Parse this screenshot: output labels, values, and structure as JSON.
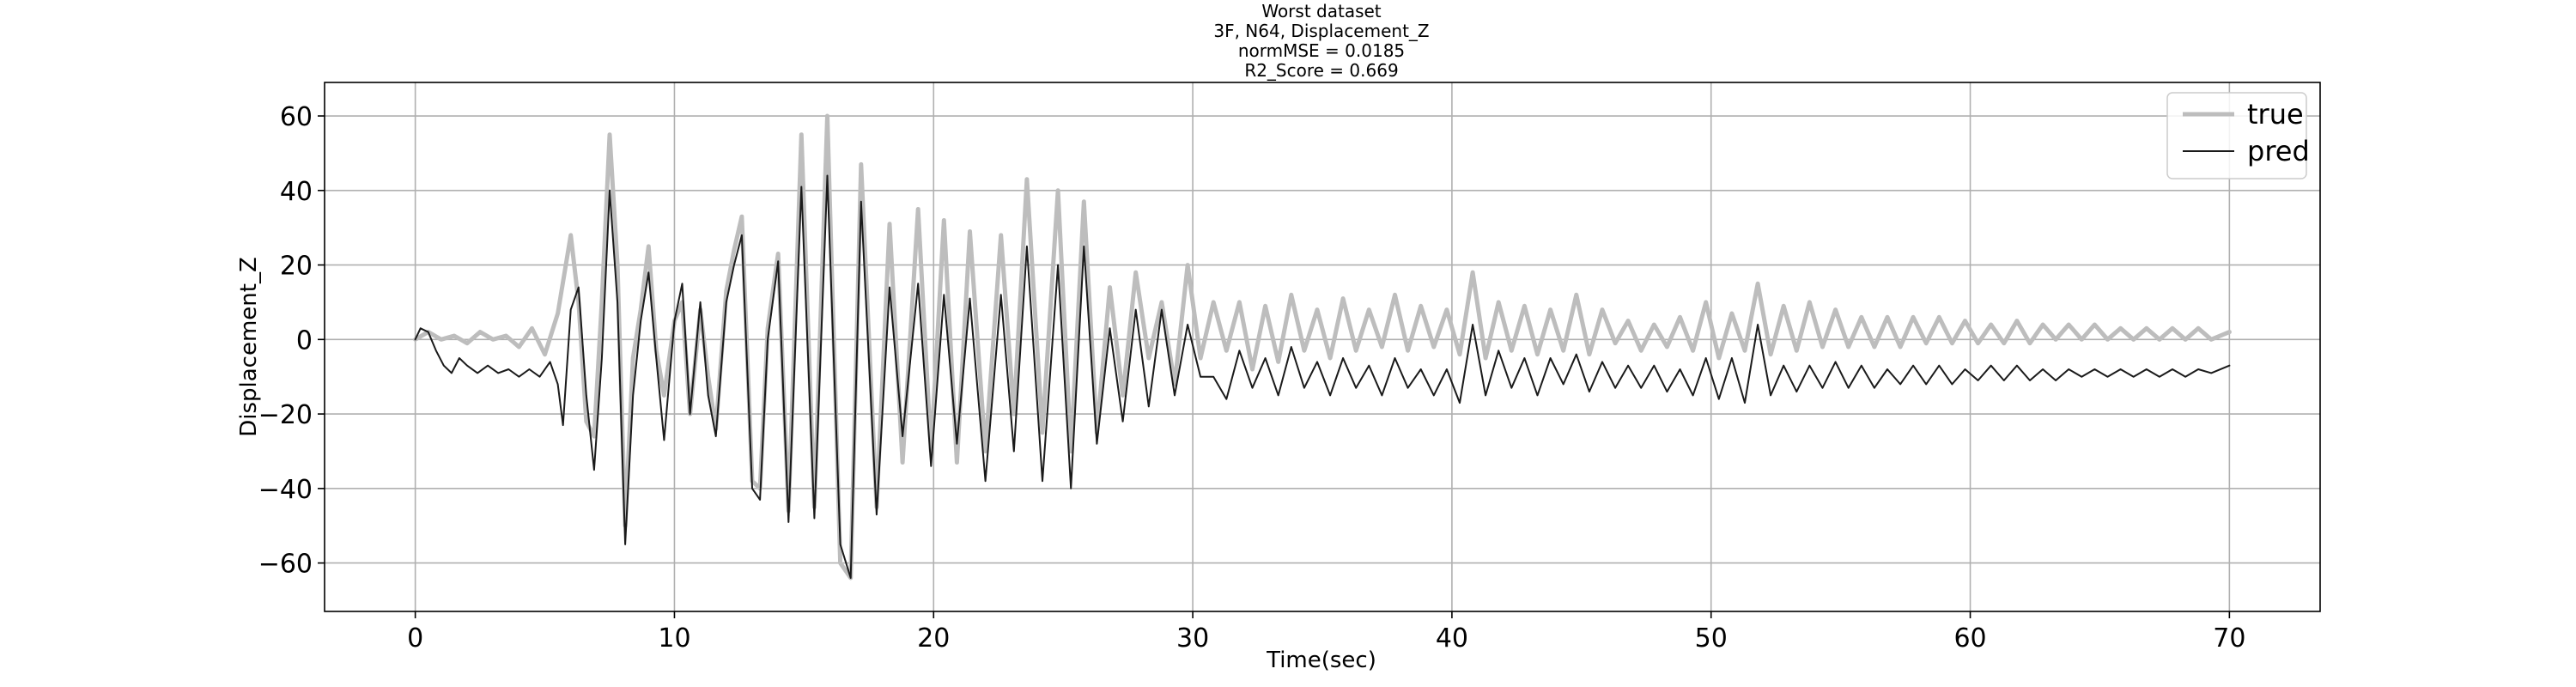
{
  "chart_data": {
    "type": "line",
    "title_lines": [
      "Worst dataset",
      "3F, N64, Displacement_Z",
      "normMSE = 0.0185",
      "R2_Score = 0.669"
    ],
    "xlabel": "Time(sec)",
    "ylabel": "Displacement_Z",
    "xlim": [
      -3.5,
      73.5
    ],
    "ylim": [
      -73,
      69
    ],
    "xticks": [
      0,
      10,
      20,
      30,
      40,
      50,
      60,
      70
    ],
    "yticks": [
      -60,
      -40,
      -20,
      0,
      20,
      40,
      60
    ],
    "xtick_labels": [
      "0",
      "10",
      "20",
      "30",
      "40",
      "50",
      "60",
      "70"
    ],
    "ytick_labels": [
      "−60",
      "−40",
      "−20",
      "0",
      "20",
      "40",
      "60"
    ],
    "grid": true,
    "legend": {
      "placement": "top-right",
      "entries": [
        "true",
        "pred"
      ]
    },
    "series": [
      {
        "name": "true",
        "color": "#bdbdbd",
        "points": [
          [
            0,
            0
          ],
          [
            0.5,
            2
          ],
          [
            1,
            0
          ],
          [
            1.5,
            1
          ],
          [
            2,
            -1
          ],
          [
            2.5,
            2
          ],
          [
            3,
            0
          ],
          [
            3.5,
            1
          ],
          [
            4,
            -2
          ],
          [
            4.5,
            3
          ],
          [
            5,
            -4
          ],
          [
            5.5,
            7
          ],
          [
            6,
            28
          ],
          [
            6.3,
            10
          ],
          [
            6.6,
            -22
          ],
          [
            6.9,
            -26
          ],
          [
            7.2,
            10
          ],
          [
            7.5,
            55
          ],
          [
            7.8,
            20
          ],
          [
            8.1,
            -50
          ],
          [
            8.4,
            -5
          ],
          [
            8.7,
            8
          ],
          [
            9,
            25
          ],
          [
            9.3,
            -3
          ],
          [
            9.6,
            -15
          ],
          [
            10,
            5
          ],
          [
            10.3,
            10
          ],
          [
            10.6,
            -20
          ],
          [
            11,
            8
          ],
          [
            11.3,
            -10
          ],
          [
            11.6,
            -24
          ],
          [
            12,
            13
          ],
          [
            12.3,
            24
          ],
          [
            12.6,
            33
          ],
          [
            13,
            -38
          ],
          [
            13.3,
            -40
          ],
          [
            13.6,
            3
          ],
          [
            14,
            23
          ],
          [
            14.4,
            -46
          ],
          [
            14.9,
            55
          ],
          [
            15.4,
            -45
          ],
          [
            15.9,
            60
          ],
          [
            16.4,
            -60
          ],
          [
            16.8,
            -64
          ],
          [
            17.2,
            47
          ],
          [
            17.8,
            -45
          ],
          [
            18.3,
            31
          ],
          [
            18.8,
            -33
          ],
          [
            19.4,
            35
          ],
          [
            19.9,
            -30
          ],
          [
            20.4,
            32
          ],
          [
            20.9,
            -33
          ],
          [
            21.4,
            29
          ],
          [
            22,
            -30
          ],
          [
            22.6,
            28
          ],
          [
            23.1,
            -20
          ],
          [
            23.6,
            43
          ],
          [
            24.2,
            -25
          ],
          [
            24.8,
            40
          ],
          [
            25.3,
            -30
          ],
          [
            25.8,
            37
          ],
          [
            26.3,
            -25
          ],
          [
            26.8,
            14
          ],
          [
            27.3,
            -15
          ],
          [
            27.8,
            18
          ],
          [
            28.3,
            -5
          ],
          [
            28.8,
            10
          ],
          [
            29.3,
            -12
          ],
          [
            29.8,
            20
          ],
          [
            30.3,
            -5
          ],
          [
            30.8,
            10
          ],
          [
            31.3,
            -3
          ],
          [
            31.8,
            10
          ],
          [
            32.3,
            -8
          ],
          [
            32.8,
            9
          ],
          [
            33.3,
            -6
          ],
          [
            33.8,
            12
          ],
          [
            34.3,
            -3
          ],
          [
            34.8,
            8
          ],
          [
            35.3,
            -5
          ],
          [
            35.8,
            11
          ],
          [
            36.3,
            -3
          ],
          [
            36.8,
            8
          ],
          [
            37.3,
            -2
          ],
          [
            37.8,
            12
          ],
          [
            38.3,
            -3
          ],
          [
            38.8,
            9
          ],
          [
            39.3,
            -2
          ],
          [
            39.8,
            8
          ],
          [
            40.3,
            -4
          ],
          [
            40.8,
            18
          ],
          [
            41.3,
            -5
          ],
          [
            41.8,
            10
          ],
          [
            42.3,
            -3
          ],
          [
            42.8,
            9
          ],
          [
            43.3,
            -4
          ],
          [
            43.8,
            8
          ],
          [
            44.3,
            -3
          ],
          [
            44.8,
            12
          ],
          [
            45.3,
            -4
          ],
          [
            45.8,
            8
          ],
          [
            46.3,
            -1
          ],
          [
            46.8,
            5
          ],
          [
            47.3,
            -3
          ],
          [
            47.8,
            4
          ],
          [
            48.3,
            -2
          ],
          [
            48.8,
            6
          ],
          [
            49.3,
            -3
          ],
          [
            49.8,
            10
          ],
          [
            50.3,
            -5
          ],
          [
            50.8,
            7
          ],
          [
            51.3,
            -3
          ],
          [
            51.8,
            15
          ],
          [
            52.3,
            -4
          ],
          [
            52.8,
            9
          ],
          [
            53.3,
            -3
          ],
          [
            53.8,
            10
          ],
          [
            54.3,
            -2
          ],
          [
            54.8,
            8
          ],
          [
            55.3,
            -2
          ],
          [
            55.8,
            6
          ],
          [
            56.3,
            -2
          ],
          [
            56.8,
            6
          ],
          [
            57.3,
            -2
          ],
          [
            57.8,
            6
          ],
          [
            58.3,
            -1
          ],
          [
            58.8,
            6
          ],
          [
            59.3,
            -1
          ],
          [
            59.8,
            5
          ],
          [
            60.3,
            -1
          ],
          [
            60.8,
            4
          ],
          [
            61.3,
            -1
          ],
          [
            61.8,
            5
          ],
          [
            62.3,
            -1
          ],
          [
            62.8,
            4
          ],
          [
            63.3,
            0
          ],
          [
            63.8,
            4
          ],
          [
            64.3,
            0
          ],
          [
            64.8,
            4
          ],
          [
            65.3,
            0
          ],
          [
            65.8,
            3
          ],
          [
            66.3,
            0
          ],
          [
            66.8,
            3
          ],
          [
            67.3,
            0
          ],
          [
            67.8,
            3
          ],
          [
            68.3,
            0
          ],
          [
            68.8,
            3
          ],
          [
            69.3,
            0
          ],
          [
            70,
            2
          ]
        ]
      },
      {
        "name": "pred",
        "color": "#1a1a1a",
        "points": [
          [
            0,
            0
          ],
          [
            0.2,
            3
          ],
          [
            0.5,
            2
          ],
          [
            0.8,
            -3
          ],
          [
            1.1,
            -7
          ],
          [
            1.4,
            -9
          ],
          [
            1.7,
            -5
          ],
          [
            2,
            -7
          ],
          [
            2.4,
            -9
          ],
          [
            2.8,
            -7
          ],
          [
            3.2,
            -9
          ],
          [
            3.6,
            -8
          ],
          [
            4,
            -10
          ],
          [
            4.4,
            -8
          ],
          [
            4.8,
            -10
          ],
          [
            5.2,
            -6
          ],
          [
            5.5,
            -12
          ],
          [
            5.7,
            -23
          ],
          [
            6,
            8
          ],
          [
            6.3,
            14
          ],
          [
            6.6,
            -15
          ],
          [
            6.9,
            -35
          ],
          [
            7.2,
            -5
          ],
          [
            7.5,
            40
          ],
          [
            7.8,
            10
          ],
          [
            8.1,
            -55
          ],
          [
            8.4,
            -15
          ],
          [
            8.7,
            5
          ],
          [
            9,
            18
          ],
          [
            9.3,
            -5
          ],
          [
            9.6,
            -27
          ],
          [
            10,
            5
          ],
          [
            10.3,
            15
          ],
          [
            10.6,
            -20
          ],
          [
            11,
            10
          ],
          [
            11.3,
            -15
          ],
          [
            11.6,
            -26
          ],
          [
            12,
            10
          ],
          [
            12.3,
            20
          ],
          [
            12.6,
            28
          ],
          [
            13,
            -40
          ],
          [
            13.3,
            -43
          ],
          [
            13.6,
            0
          ],
          [
            14,
            21
          ],
          [
            14.4,
            -49
          ],
          [
            14.9,
            41
          ],
          [
            15.4,
            -48
          ],
          [
            15.9,
            44
          ],
          [
            16.4,
            -55
          ],
          [
            16.8,
            -64
          ],
          [
            17.2,
            37
          ],
          [
            17.8,
            -47
          ],
          [
            18.3,
            14
          ],
          [
            18.8,
            -26
          ],
          [
            19.4,
            15
          ],
          [
            19.9,
            -34
          ],
          [
            20.4,
            12
          ],
          [
            20.9,
            -28
          ],
          [
            21.4,
            11
          ],
          [
            22,
            -38
          ],
          [
            22.6,
            12
          ],
          [
            23.1,
            -30
          ],
          [
            23.6,
            25
          ],
          [
            24.2,
            -38
          ],
          [
            24.8,
            20
          ],
          [
            25.3,
            -40
          ],
          [
            25.8,
            25
          ],
          [
            26.3,
            -28
          ],
          [
            26.8,
            3
          ],
          [
            27.3,
            -22
          ],
          [
            27.8,
            8
          ],
          [
            28.3,
            -18
          ],
          [
            28.8,
            8
          ],
          [
            29.3,
            -15
          ],
          [
            29.8,
            4
          ],
          [
            30.3,
            -10
          ],
          [
            30.8,
            -10
          ],
          [
            31.3,
            -16
          ],
          [
            31.8,
            -3
          ],
          [
            32.3,
            -13
          ],
          [
            32.8,
            -5
          ],
          [
            33.3,
            -15
          ],
          [
            33.8,
            -2
          ],
          [
            34.3,
            -13
          ],
          [
            34.8,
            -6
          ],
          [
            35.3,
            -15
          ],
          [
            35.8,
            -5
          ],
          [
            36.3,
            -13
          ],
          [
            36.8,
            -7
          ],
          [
            37.3,
            -15
          ],
          [
            37.8,
            -5
          ],
          [
            38.3,
            -13
          ],
          [
            38.8,
            -8
          ],
          [
            39.3,
            -15
          ],
          [
            39.8,
            -8
          ],
          [
            40.3,
            -17
          ],
          [
            40.8,
            4
          ],
          [
            41.3,
            -15
          ],
          [
            41.8,
            -3
          ],
          [
            42.3,
            -13
          ],
          [
            42.8,
            -5
          ],
          [
            43.3,
            -15
          ],
          [
            43.8,
            -5
          ],
          [
            44.3,
            -12
          ],
          [
            44.8,
            -4
          ],
          [
            45.3,
            -14
          ],
          [
            45.8,
            -6
          ],
          [
            46.3,
            -13
          ],
          [
            46.8,
            -7
          ],
          [
            47.3,
            -13
          ],
          [
            47.8,
            -7
          ],
          [
            48.3,
            -14
          ],
          [
            48.8,
            -8
          ],
          [
            49.3,
            -15
          ],
          [
            49.8,
            -5
          ],
          [
            50.3,
            -16
          ],
          [
            50.8,
            -5
          ],
          [
            51.3,
            -17
          ],
          [
            51.8,
            4
          ],
          [
            52.3,
            -15
          ],
          [
            52.8,
            -7
          ],
          [
            53.3,
            -14
          ],
          [
            53.8,
            -7
          ],
          [
            54.3,
            -13
          ],
          [
            54.8,
            -6
          ],
          [
            55.3,
            -13
          ],
          [
            55.8,
            -7
          ],
          [
            56.3,
            -13
          ],
          [
            56.8,
            -8
          ],
          [
            57.3,
            -12
          ],
          [
            57.8,
            -7
          ],
          [
            58.3,
            -12
          ],
          [
            58.8,
            -7
          ],
          [
            59.3,
            -12
          ],
          [
            59.8,
            -8
          ],
          [
            60.3,
            -11
          ],
          [
            60.8,
            -7
          ],
          [
            61.3,
            -11
          ],
          [
            61.8,
            -7
          ],
          [
            62.3,
            -11
          ],
          [
            62.8,
            -8
          ],
          [
            63.3,
            -11
          ],
          [
            63.8,
            -8
          ],
          [
            64.3,
            -10
          ],
          [
            64.8,
            -8
          ],
          [
            65.3,
            -10
          ],
          [
            65.8,
            -8
          ],
          [
            66.3,
            -10
          ],
          [
            66.8,
            -8
          ],
          [
            67.3,
            -10
          ],
          [
            67.8,
            -8
          ],
          [
            68.3,
            -10
          ],
          [
            68.8,
            -8
          ],
          [
            69.3,
            -9
          ],
          [
            70,
            -7
          ]
        ]
      }
    ]
  }
}
